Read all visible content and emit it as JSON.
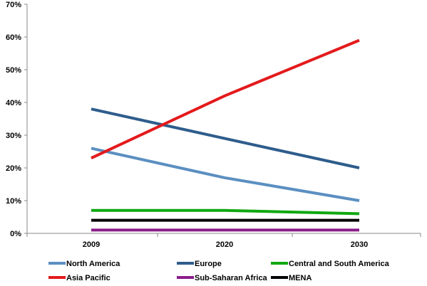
{
  "chart_data": {
    "type": "line",
    "categories": [
      "2009",
      "2020",
      "2030"
    ],
    "ylim": [
      0,
      70
    ],
    "yticks": [
      "0%",
      "10%",
      "20%",
      "30%",
      "40%",
      "50%",
      "60%",
      "70%"
    ],
    "grid": false,
    "legend_position": "bottom",
    "series": [
      {
        "name": "North America",
        "values": [
          26,
          17,
          10
        ],
        "color": "#5b8fc1"
      },
      {
        "name": "Europe",
        "values": [
          38,
          29,
          20
        ],
        "color": "#2e5d8c"
      },
      {
        "name": "Central and South America",
        "values": [
          7,
          7,
          6
        ],
        "color": "#10a810"
      },
      {
        "name": "Asia Pacific",
        "values": [
          23,
          42,
          59
        ],
        "color": "#e31a1c"
      },
      {
        "name": "Sub-Saharan Africa",
        "values": [
          1,
          1,
          1
        ],
        "color": "#8a1c8a"
      },
      {
        "name": "MENA",
        "values": [
          4,
          4,
          4
        ],
        "color": "#000000"
      }
    ]
  }
}
